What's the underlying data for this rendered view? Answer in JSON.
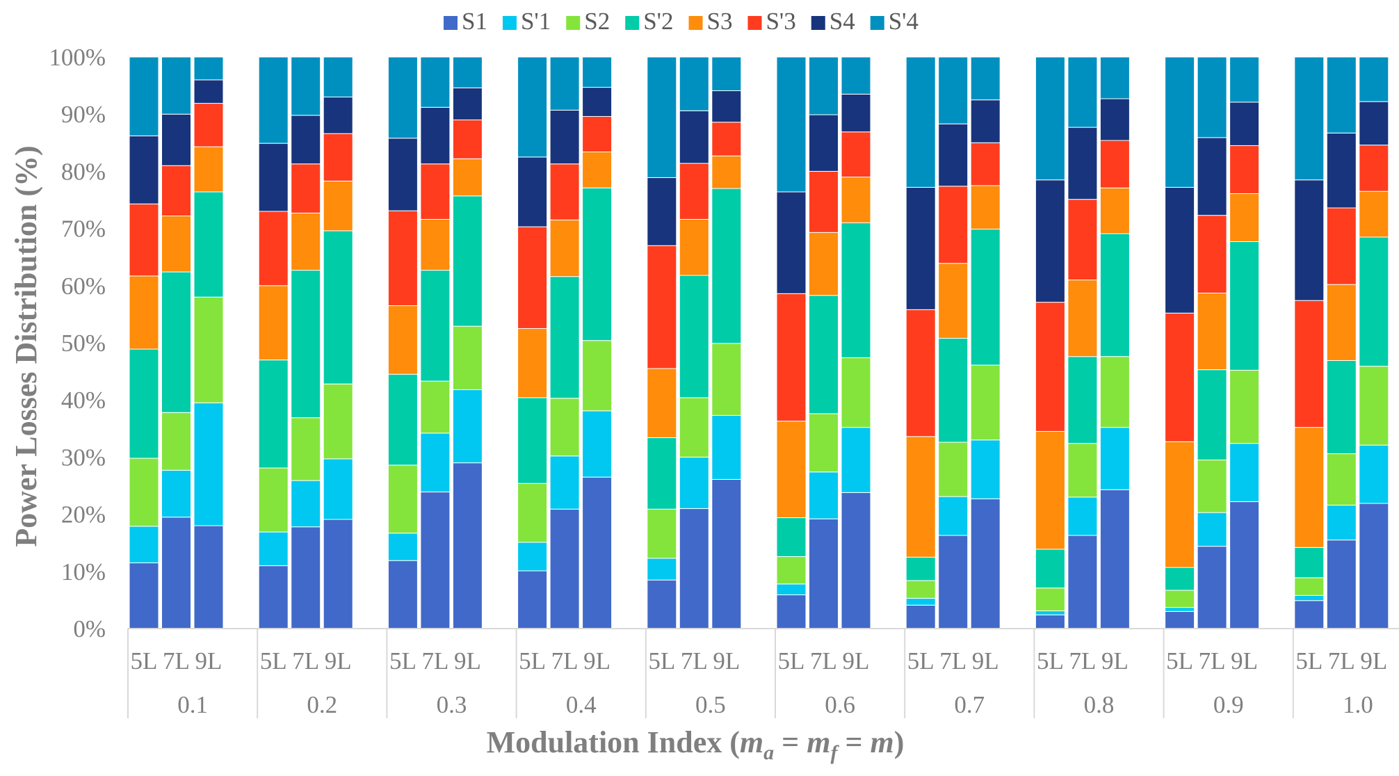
{
  "chart_data": {
    "type": "bar",
    "stacked": true,
    "normalized": true,
    "ylabel": "Power Losses Distribution (%)",
    "xlabel_parts": [
      "Modulation Index (",
      "m",
      "a",
      " = ",
      "m",
      "f",
      " = ",
      "m",
      ")"
    ],
    "ylim": [
      0,
      100
    ],
    "yticks": [
      "0%",
      "10%",
      "20%",
      "30%",
      "40%",
      "50%",
      "60%",
      "70%",
      "80%",
      "90%",
      "100%"
    ],
    "legend_position": "top",
    "grid": false,
    "series": [
      {
        "name": "S1",
        "color": "#4169c9"
      },
      {
        "name": "S'1",
        "color": "#00c8f0"
      },
      {
        "name": "S2",
        "color": "#84e43c"
      },
      {
        "name": "S'2",
        "color": "#00cca8"
      },
      {
        "name": "S3",
        "color": "#ff8c0a"
      },
      {
        "name": "S'3",
        "color": "#ff3c1e"
      },
      {
        "name": "S4",
        "color": "#18347c"
      },
      {
        "name": "S'4",
        "color": "#0090c0"
      }
    ],
    "levels": [
      "5L",
      "7L",
      "9L"
    ],
    "groups": [
      {
        "label": "0.1",
        "bars": [
          [
            11.5,
            6.4,
            11.9,
            19.1,
            12.8,
            12.6,
            11.9,
            13.8
          ],
          [
            19.5,
            8.2,
            10.1,
            24.6,
            9.8,
            8.8,
            9.0,
            10.0
          ],
          [
            18.0,
            21.5,
            18.5,
            18.4,
            7.9,
            7.6,
            4.1,
            4.0
          ]
        ]
      },
      {
        "label": "0.2",
        "bars": [
          [
            11.0,
            5.9,
            11.2,
            18.9,
            13.0,
            13.0,
            11.9,
            15.1
          ],
          [
            17.8,
            8.1,
            11.0,
            25.8,
            10.0,
            8.6,
            8.5,
            10.2
          ],
          [
            19.1,
            10.6,
            13.1,
            26.8,
            8.7,
            8.3,
            6.4,
            7.0
          ]
        ]
      },
      {
        "label": "0.3",
        "bars": [
          [
            11.9,
            4.8,
            11.9,
            15.9,
            12.0,
            16.6,
            12.7,
            14.2
          ],
          [
            23.9,
            10.3,
            9.1,
            19.4,
            8.9,
            9.7,
            9.9,
            8.8
          ],
          [
            29.0,
            12.8,
            11.1,
            22.8,
            6.5,
            6.8,
            5.6,
            5.4
          ]
        ]
      },
      {
        "label": "0.4",
        "bars": [
          [
            10.1,
            5.0,
            10.3,
            15.0,
            12.1,
            17.8,
            12.2,
            17.5
          ],
          [
            20.9,
            9.3,
            10.1,
            21.3,
            9.9,
            9.8,
            9.4,
            9.3
          ],
          [
            26.5,
            11.6,
            12.3,
            26.7,
            6.3,
            6.2,
            5.1,
            5.3
          ]
        ]
      },
      {
        "label": "0.5",
        "bars": [
          [
            8.5,
            3.8,
            8.6,
            12.5,
            12.1,
            21.5,
            11.9,
            21.1
          ],
          [
            21.0,
            9.0,
            10.4,
            21.4,
            9.8,
            9.8,
            9.2,
            9.4
          ],
          [
            26.1,
            11.2,
            12.6,
            27.1,
            5.7,
            5.9,
            5.5,
            5.9
          ]
        ]
      },
      {
        "label": "0.6",
        "bars": [
          [
            5.9,
            1.9,
            4.8,
            6.8,
            16.9,
            22.3,
            17.8,
            23.6
          ],
          [
            19.2,
            8.2,
            10.2,
            20.7,
            11.0,
            10.7,
            9.9,
            10.1
          ],
          [
            23.8,
            11.4,
            12.2,
            23.6,
            8.0,
            7.9,
            6.6,
            6.5
          ]
        ]
      },
      {
        "label": "0.7",
        "bars": [
          [
            4.1,
            1.2,
            3.1,
            4.1,
            21.1,
            22.2,
            21.4,
            22.8
          ],
          [
            16.3,
            6.8,
            9.5,
            18.2,
            13.1,
            13.5,
            10.9,
            11.7
          ],
          [
            22.7,
            10.3,
            13.1,
            23.8,
            7.6,
            7.5,
            7.5,
            7.5
          ]
        ]
      },
      {
        "label": "0.8",
        "bars": [
          [
            2.4,
            0.7,
            4.0,
            6.8,
            20.6,
            22.6,
            21.4,
            21.5
          ],
          [
            16.3,
            6.7,
            9.4,
            15.2,
            13.4,
            14.1,
            12.6,
            12.3
          ],
          [
            24.3,
            10.9,
            12.4,
            21.5,
            8.0,
            8.3,
            7.3,
            7.3
          ]
        ]
      },
      {
        "label": "0.9",
        "bars": [
          [
            3.0,
            0.7,
            3.0,
            4.0,
            22.0,
            22.5,
            22.0,
            22.8
          ],
          [
            14.4,
            5.9,
            9.2,
            15.8,
            13.4,
            13.6,
            13.6,
            14.1
          ],
          [
            22.2,
            10.2,
            12.8,
            22.5,
            8.4,
            8.4,
            7.6,
            7.9
          ]
        ]
      },
      {
        "label": "1.0",
        "bars": [
          [
            4.9,
            0.9,
            3.1,
            5.3,
            21.0,
            22.2,
            21.1,
            21.5
          ],
          [
            15.5,
            6.1,
            9.0,
            16.3,
            13.3,
            13.4,
            13.1,
            13.3
          ],
          [
            21.9,
            10.2,
            13.8,
            22.6,
            8.0,
            8.1,
            7.6,
            7.8
          ]
        ]
      }
    ]
  }
}
